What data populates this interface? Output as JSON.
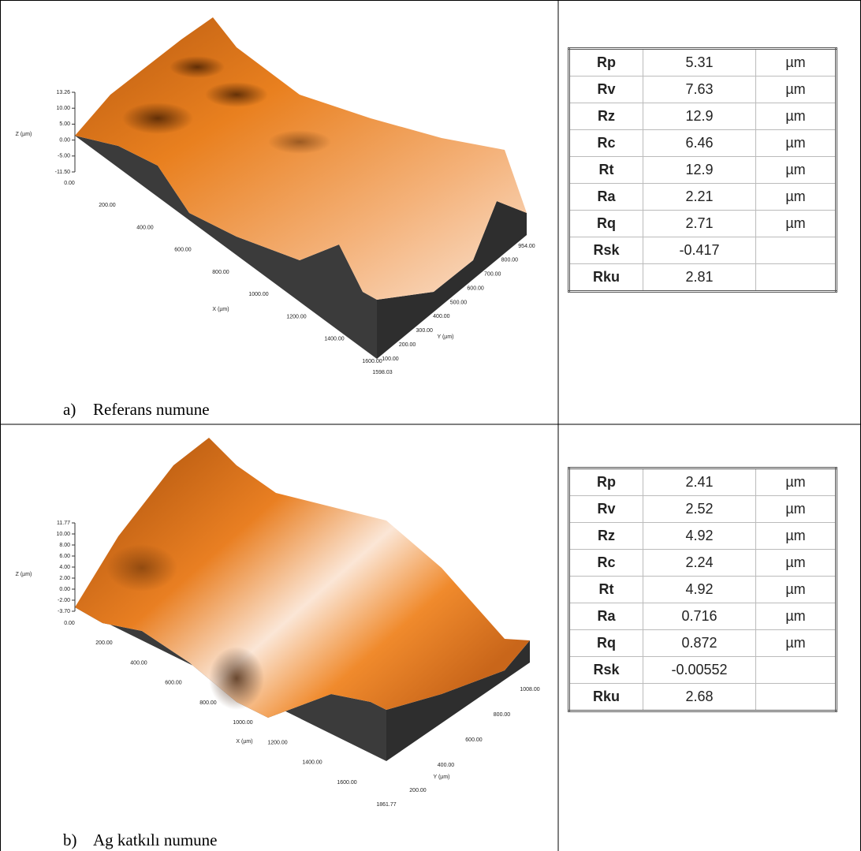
{
  "panels": [
    {
      "label": "a)",
      "caption": "Referans numune",
      "plot": {
        "z_label": "Z (µm)",
        "z_ticks": [
          "13.26",
          "10.00",
          "5.00",
          "0.00",
          "-5.00",
          "-11.50"
        ],
        "x_label": "X (µm)",
        "x_ticks": [
          "0.00",
          "200.00",
          "400.00",
          "600.00",
          "800.00",
          "1000.00",
          "1200.00",
          "1400.00",
          "1600.00",
          "1598.03"
        ],
        "y_label": "Y (µm)",
        "y_ticks": [
          "100.00",
          "200.00",
          "300.00",
          "400.00",
          "500.00",
          "600.00",
          "700.00",
          "800.00",
          "954.00"
        ]
      },
      "table": [
        [
          "Rp",
          "5.31",
          "µm"
        ],
        [
          "Rv",
          "7.63",
          "µm"
        ],
        [
          "Rz",
          "12.9",
          "µm"
        ],
        [
          "Rc",
          "6.46",
          "µm"
        ],
        [
          "Rt",
          "12.9",
          "µm"
        ],
        [
          "Ra",
          "2.21",
          "µm"
        ],
        [
          "Rq",
          "2.71",
          "µm"
        ],
        [
          "Rsk",
          "-0.417"
        ],
        [
          "Rku",
          "2.81"
        ]
      ]
    },
    {
      "label": "b)",
      "caption": "Ag katkılı numune",
      "plot": {
        "z_label": "Z (µm)",
        "z_ticks": [
          "11.77",
          "10.00",
          "8.00",
          "6.00",
          "4.00",
          "2.00",
          "0.00",
          "-2.00",
          "-3.70"
        ],
        "x_label": "X (µm)",
        "x_ticks": [
          "0.00",
          "200.00",
          "400.00",
          "600.00",
          "800.00",
          "1000.00",
          "1200.00",
          "1400.00",
          "1600.00",
          "1861.77"
        ],
        "y_label": "Y (µm)",
        "y_ticks": [
          "200.00",
          "400.00",
          "600.00",
          "800.00",
          "1008.00"
        ]
      },
      "table": [
        [
          "Rp",
          "2.41",
          "µm"
        ],
        [
          "Rv",
          "2.52",
          "µm"
        ],
        [
          "Rz",
          "4.92",
          "µm"
        ],
        [
          "Rc",
          "2.24",
          "µm"
        ],
        [
          "Rt",
          "4.92",
          "µm"
        ],
        [
          "Ra",
          "0.716",
          "µm"
        ],
        [
          "Rq",
          "0.872",
          "µm"
        ],
        [
          "Rsk",
          "-0.00552"
        ],
        [
          "Rku",
          "2.68"
        ]
      ]
    }
  ]
}
